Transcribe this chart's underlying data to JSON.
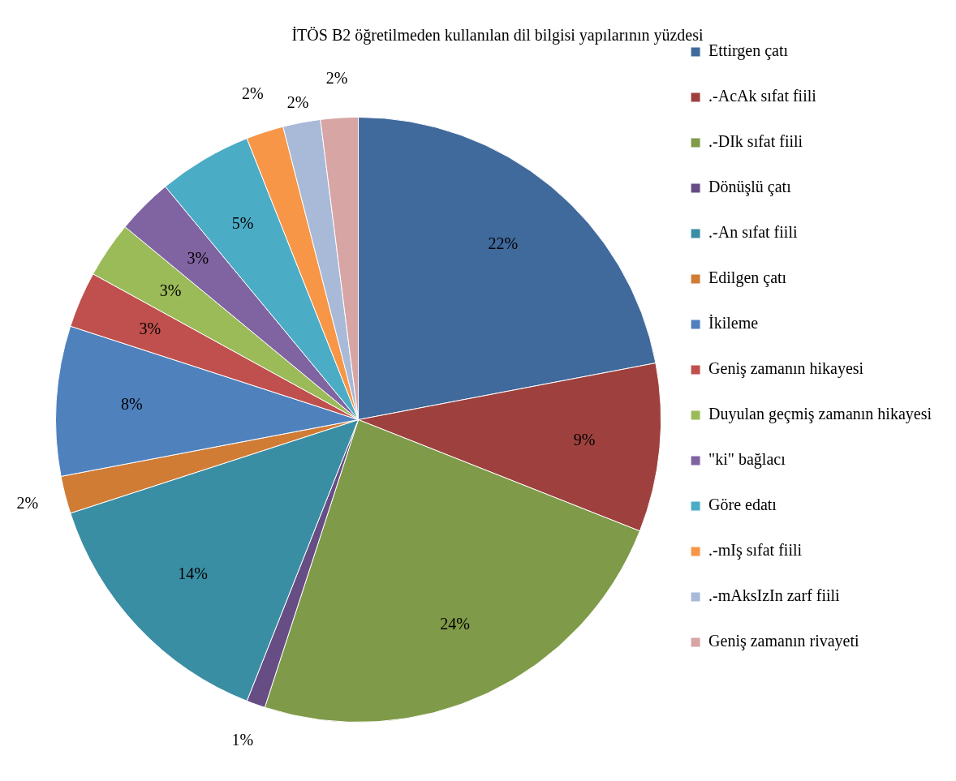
{
  "chart_data": {
    "type": "pie",
    "title": "İTÖS B2 öğretilmeden kullanılan dil bilgisi yapılarının yüzdesi",
    "categories": [
      "Ettirgen çatı",
      ".-AcAk sıfat fiili",
      ".-DIk sıfat fiili",
      "Dönüşlü çatı",
      ".-An sıfat fiili",
      "Edilgen çatı",
      "İkileme",
      "Geniş zamanın hikayesi",
      "Duyulan geçmiş zamanın hikayesi",
      "\"ki\" bağlacı",
      "Göre edatı",
      ".-mIş sıfat fiili",
      ".-mAksIzIn zarf fiili",
      "Geniş zamanın rivayeti"
    ],
    "values": [
      22,
      9,
      24,
      1,
      14,
      2,
      8,
      3,
      3,
      3,
      5,
      2,
      2,
      2
    ],
    "value_labels": [
      "22%",
      "9%",
      "24%",
      "1%",
      "14%",
      "2%",
      "8%",
      "3%",
      "3%",
      "3%",
      "5%",
      "2%",
      "2%",
      "2%"
    ],
    "colors": [
      "#40699c",
      "#9e413e",
      "#7f9a48",
      "#664d84",
      "#3a8ea4",
      "#d07c35",
      "#4f81bd",
      "#c0504d",
      "#9bbb59",
      "#8064a2",
      "#4bacc6",
      "#f79646",
      "#a9b9d8",
      "#d6a5a4"
    ],
    "legend": "right"
  }
}
